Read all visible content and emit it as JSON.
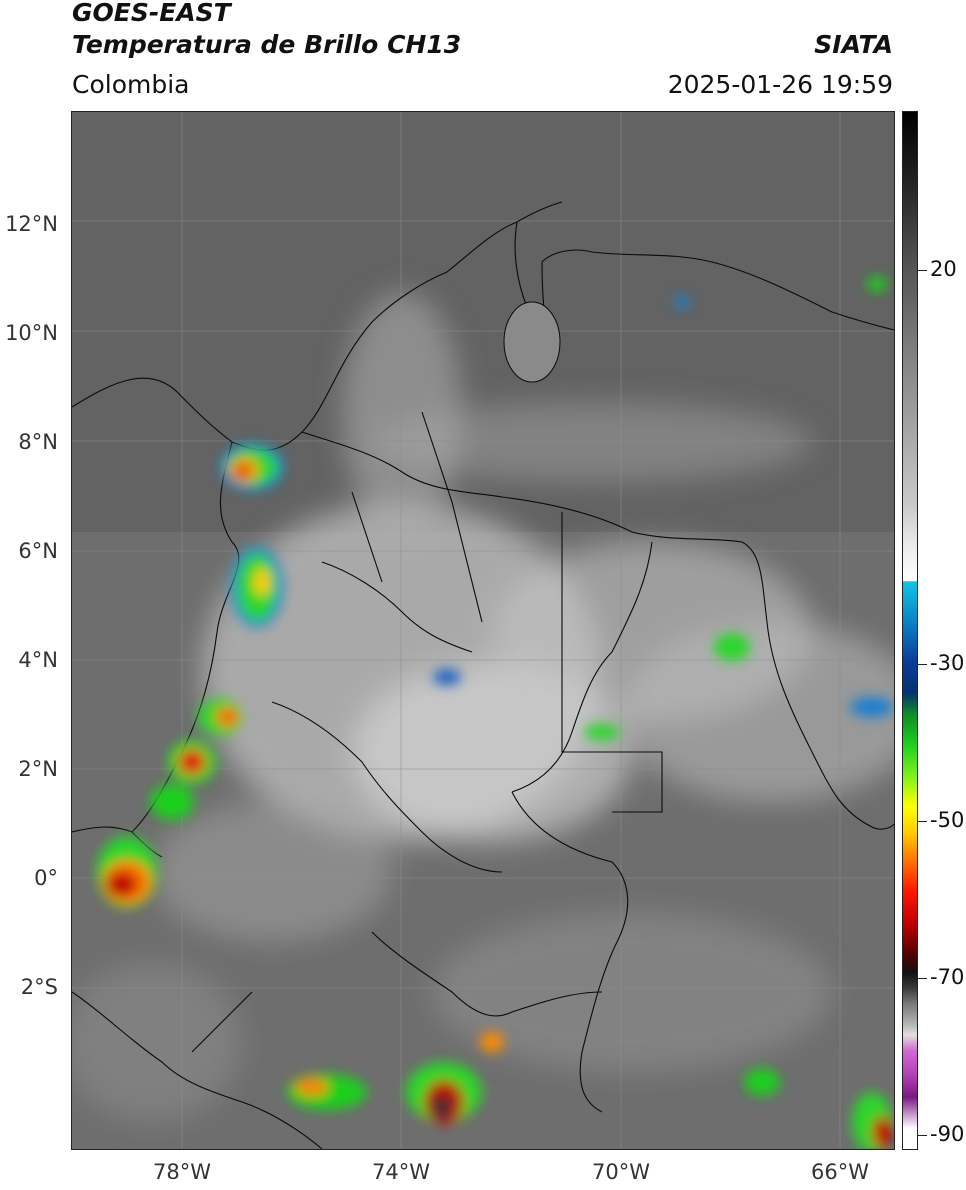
{
  "header": {
    "title_line1": "GOES-EAST",
    "title_line2": "Temperatura de Brillo CH13",
    "organization": "SIATA",
    "region": "Colombia",
    "timestamp": "2025-01-26 19:59"
  },
  "map": {
    "lat_ticks": [
      "12°N",
      "10°N",
      "8°N",
      "6°N",
      "4°N",
      "2°N",
      "0°",
      "2°S"
    ],
    "lon_ticks": [
      "78°W",
      "74°W",
      "70°W",
      "66°W"
    ],
    "background_color": "#6a6a6a"
  },
  "colorbar": {
    "labels": [
      "20",
      "-30",
      "-50",
      "-70",
      "-90"
    ],
    "colors": [
      "#000000",
      "#7a7a7a",
      "#ffffff",
      "#12c4e6",
      "#0a3d9a",
      "#1fcf1f",
      "#ffff00",
      "#ff7a00",
      "#c80000",
      "#111111",
      "#e0e0e0",
      "#b03cb4"
    ]
  }
}
